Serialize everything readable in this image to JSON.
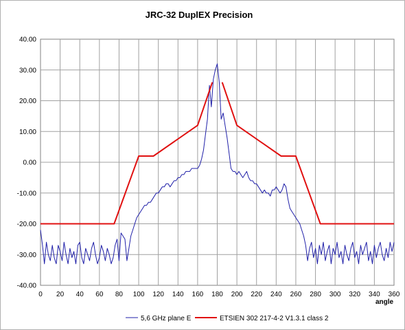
{
  "chart_data": {
    "type": "line",
    "title": "JRC-32 DuplEX Precision",
    "xlabel": "angle",
    "ylabel": "",
    "xlim": [
      0,
      360
    ],
    "ylim": [
      -40,
      40
    ],
    "xticks": [
      0,
      20,
      40,
      60,
      80,
      100,
      120,
      140,
      160,
      180,
      200,
      220,
      240,
      260,
      280,
      300,
      320,
      340,
      360
    ],
    "yticks": [
      "40.00",
      "30.00",
      "20.00",
      "10.00",
      "0.00",
      "-10.00",
      "-20.00",
      "-30.00",
      "-40.00"
    ],
    "grid": true,
    "legend_position": "bottom",
    "colors": {
      "series_1": "#1f1fa8",
      "series_2": "#e01010",
      "plot_border": "#808080",
      "grid": "#a0a0a0"
    },
    "series": [
      {
        "name": "5,6 GHz plane E",
        "x": [
          0,
          2,
          4,
          6,
          8,
          10,
          12,
          14,
          16,
          18,
          20,
          22,
          24,
          26,
          28,
          30,
          32,
          34,
          36,
          38,
          40,
          42,
          44,
          46,
          48,
          50,
          52,
          54,
          56,
          58,
          60,
          62,
          64,
          66,
          68,
          70,
          72,
          74,
          76,
          78,
          80,
          82,
          84,
          86,
          88,
          90,
          92,
          94,
          96,
          98,
          100,
          102,
          104,
          106,
          108,
          110,
          112,
          114,
          116,
          118,
          120,
          122,
          124,
          126,
          128,
          130,
          132,
          134,
          136,
          138,
          140,
          142,
          144,
          146,
          148,
          150,
          152,
          154,
          156,
          158,
          160,
          162,
          164,
          166,
          168,
          170,
          172,
          174,
          176,
          178,
          180,
          182,
          184,
          186,
          188,
          190,
          192,
          194,
          196,
          198,
          200,
          202,
          204,
          206,
          208,
          210,
          212,
          214,
          216,
          218,
          220,
          222,
          224,
          226,
          228,
          230,
          232,
          234,
          236,
          238,
          240,
          242,
          244,
          246,
          248,
          250,
          252,
          254,
          256,
          258,
          260,
          262,
          264,
          266,
          268,
          270,
          272,
          274,
          276,
          278,
          280,
          282,
          284,
          286,
          288,
          290,
          292,
          294,
          296,
          298,
          300,
          302,
          304,
          306,
          308,
          310,
          312,
          314,
          316,
          318,
          320,
          322,
          324,
          326,
          328,
          330,
          332,
          334,
          336,
          338,
          340,
          342,
          344,
          346,
          348,
          350,
          352,
          354,
          356,
          358,
          360
        ],
        "y": [
          -22,
          -27,
          -33,
          -26,
          -30,
          -32,
          -27,
          -31,
          -33,
          -27,
          -29,
          -32,
          -26,
          -30,
          -33,
          -28,
          -31,
          -29,
          -33,
          -27,
          -26,
          -31,
          -33,
          -28,
          -30,
          -32,
          -28,
          -26,
          -30,
          -33,
          -31,
          -27,
          -29,
          -32,
          -28,
          -30,
          -33,
          -31,
          -27,
          -25,
          -32,
          -23,
          -24,
          -25,
          -32,
          -28,
          -24,
          -22,
          -20,
          -18,
          -17,
          -16,
          -15,
          -14,
          -14,
          -13,
          -13,
          -12,
          -11,
          -10,
          -10,
          -9,
          -8,
          -8,
          -7,
          -7,
          -8,
          -7,
          -6,
          -6,
          -5,
          -5,
          -4,
          -4,
          -3,
          -3,
          -3,
          -2,
          -2,
          -2,
          -2,
          -1,
          1,
          4,
          9,
          14,
          25,
          18,
          27,
          30,
          32,
          26,
          14,
          16,
          12,
          8,
          3,
          -2,
          -3,
          -3,
          -4,
          -3,
          -4,
          -5,
          -4,
          -3,
          -5,
          -6,
          -6,
          -7,
          -7,
          -8,
          -9,
          -10,
          -9,
          -10,
          -10,
          -11,
          -9,
          -9,
          -8,
          -9,
          -10,
          -9,
          -7,
          -8,
          -12,
          -15,
          -16,
          -17,
          -18,
          -19,
          -20,
          -22,
          -24,
          -27,
          -32,
          -28,
          -26,
          -31,
          -28,
          -33,
          -27,
          -30,
          -26,
          -32,
          -29,
          -27,
          -33,
          -28,
          -30,
          -26,
          -31,
          -29,
          -33,
          -27,
          -30,
          -32,
          -28,
          -26,
          -31,
          -29,
          -33,
          -27,
          -30,
          -28,
          -26,
          -32,
          -29,
          -33,
          -27,
          -31,
          -28,
          -26,
          -30,
          -32,
          -28,
          -31,
          -26,
          -29,
          -26
        ]
      },
      {
        "name": "ETSIEN 302 217-4-2 V1.3.1 class 2",
        "x": [
          0,
          60,
          75,
          100,
          115,
          160,
          175,
          null,
          185,
          200,
          245,
          260,
          285,
          360
        ],
        "y": [
          -20,
          -20,
          -20,
          2,
          2,
          12,
          26,
          null,
          26,
          12,
          2,
          2,
          -20,
          -20
        ]
      }
    ]
  }
}
